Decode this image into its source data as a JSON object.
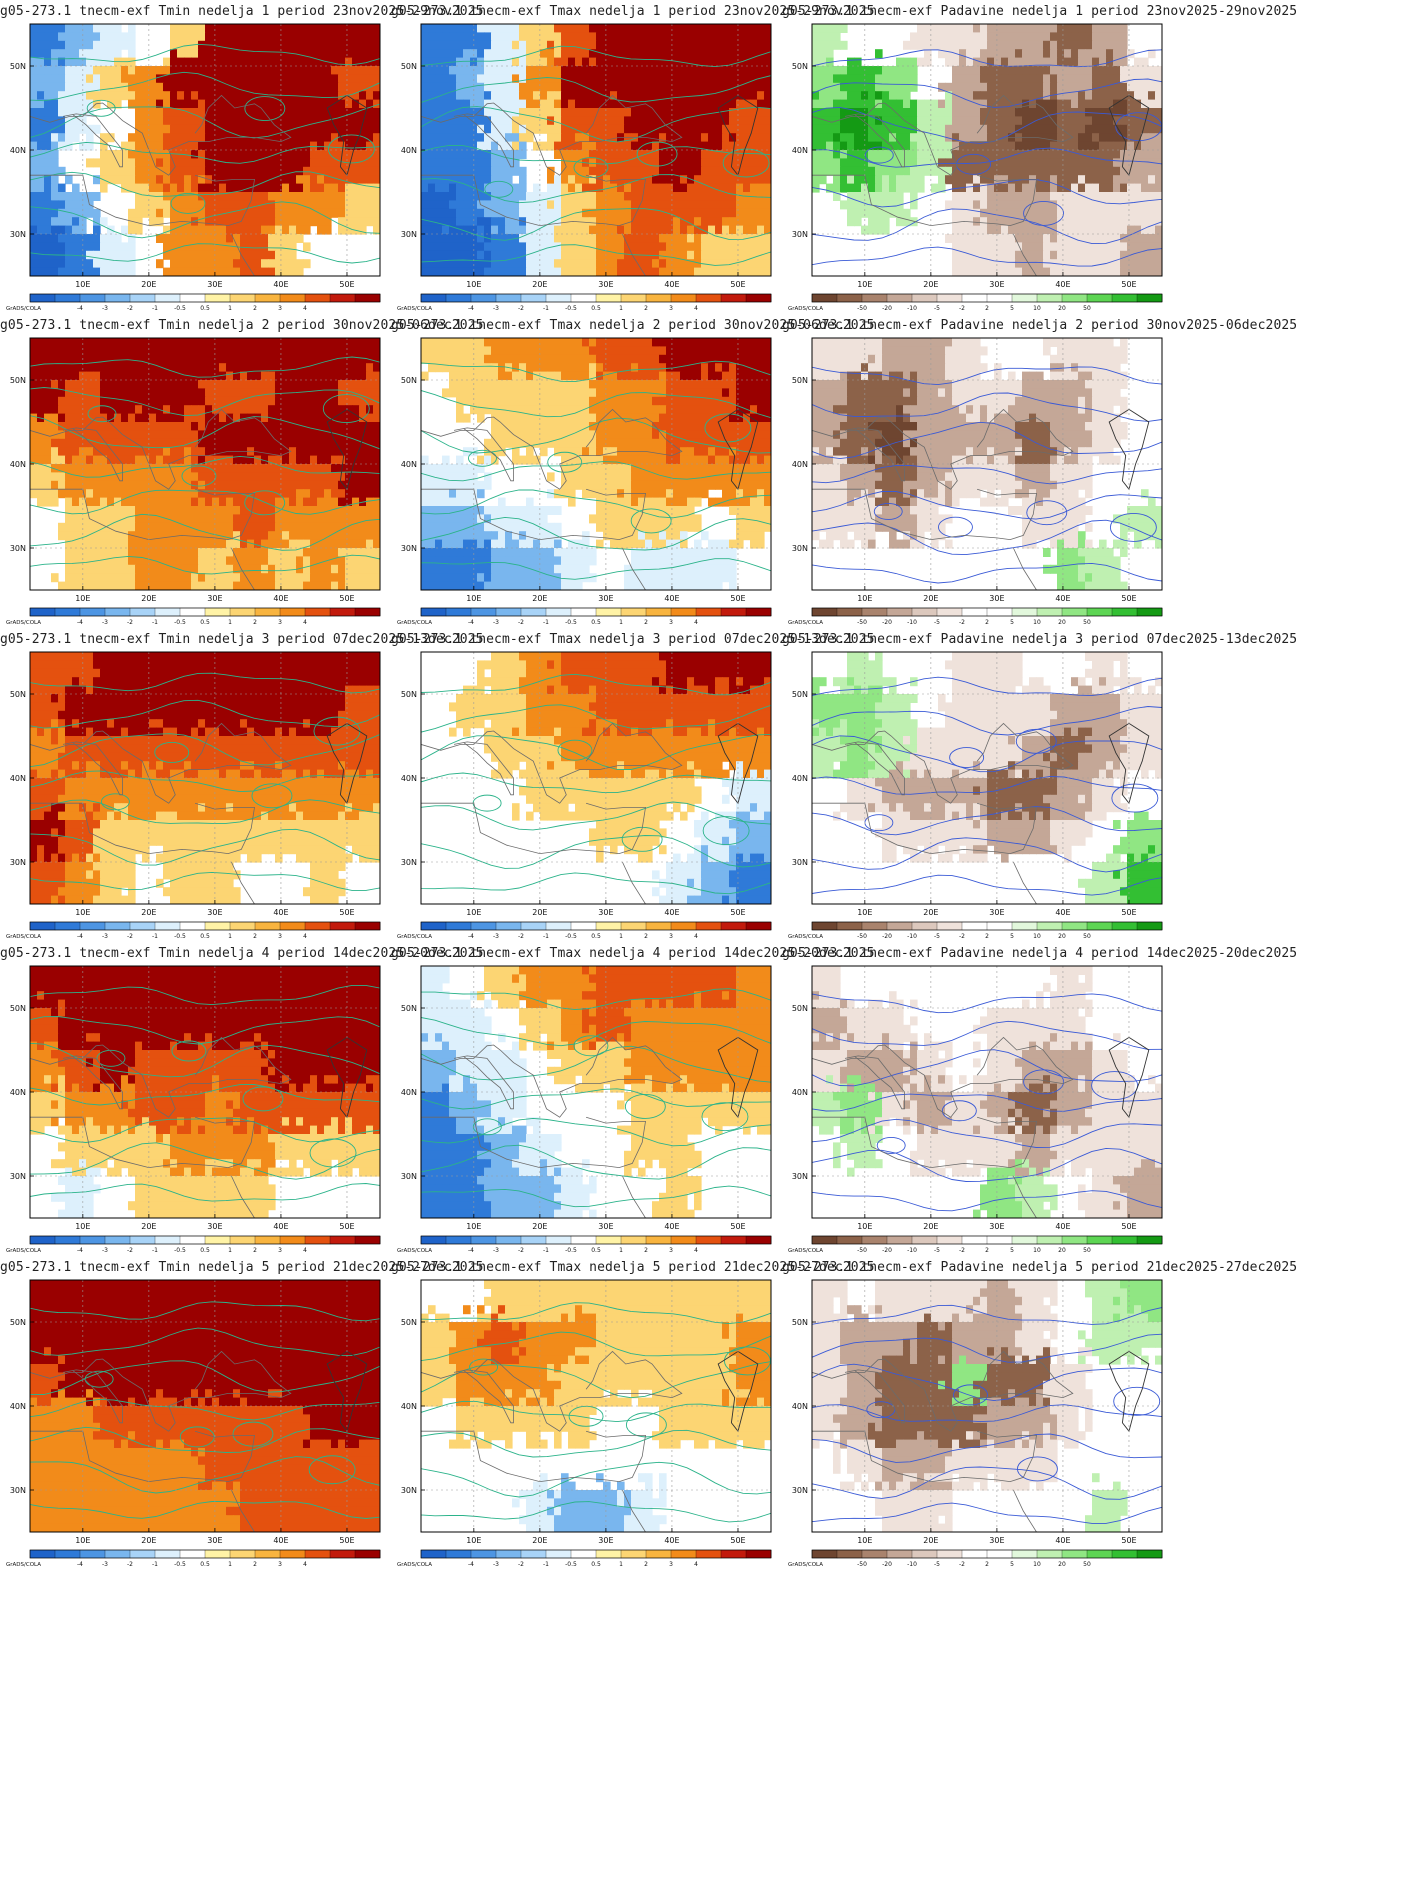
{
  "meta": {
    "cols": 3,
    "rows": 5
  },
  "axes": {
    "lat_labels": [
      "50N",
      "40N",
      "30N"
    ],
    "lon_labels": [
      "10E",
      "20E",
      "30E",
      "40E",
      "50E"
    ]
  },
  "colorbars": {
    "temperature": {
      "logo": "GrADS/COLA",
      "ticks": [
        "-4",
        "-3",
        "-2",
        "-1",
        "-0.5",
        "0.5",
        "1",
        "2",
        "3",
        "4"
      ],
      "colors": [
        "#1f63c9",
        "#2f7ad8",
        "#4d95e3",
        "#79b6ee",
        "#a8d3f7",
        "#ddf0fc",
        "#ffffff",
        "#fff3a6",
        "#fcd573",
        "#f8b43f",
        "#f28b1a",
        "#e4510f",
        "#c21a0c",
        "#9a0000"
      ]
    },
    "precip": {
      "logo": "GrADS/COLA",
      "ticks": [
        "-50",
        "-20",
        "-10",
        "-5",
        "-2",
        "2",
        "5",
        "10",
        "20",
        "50"
      ],
      "colors": [
        "#6e4530",
        "#8c6249",
        "#a9836d",
        "#c4a797",
        "#dcc8bd",
        "#efe2db",
        "#ffffff",
        "#ffffff",
        "#e2f8dc",
        "#bff0b1",
        "#90e683",
        "#5dd553",
        "#33bf33",
        "#149a14"
      ]
    }
  },
  "panels": [
    {
      "title": "g05-273.1 tnecm-exf Tmin nedelja 1 period 23nov2025-29nov2025",
      "variable": "Tmin",
      "week": 1,
      "colorbar": "temperature",
      "pattern": [
        [
          -3,
          -2,
          -1,
          0,
          1,
          4,
          4,
          4,
          4,
          4
        ],
        [
          -2,
          -1,
          1,
          2,
          4,
          4,
          4,
          4,
          4,
          3
        ],
        [
          -3,
          -1,
          0,
          2,
          3,
          4,
          4,
          4,
          4,
          4
        ],
        [
          -2,
          0,
          1,
          2,
          3,
          4,
          4,
          4,
          3,
          3
        ],
        [
          -3,
          -2,
          0,
          1,
          2,
          3,
          3,
          2,
          2,
          1
        ],
        [
          -4,
          -3,
          -1,
          0,
          2,
          2,
          3,
          1,
          0,
          0
        ]
      ]
    },
    {
      "title": "g05-273.1 tnecm-exf Tmax nedelja 1 period 23nov2025-29nov2025",
      "variable": "Tmax",
      "week": 1,
      "colorbar": "temperature",
      "pattern": [
        [
          -3,
          -3,
          -1,
          1,
          3,
          4,
          4,
          4,
          4,
          4
        ],
        [
          -3,
          -2,
          -1,
          2,
          4,
          4,
          4,
          4,
          4,
          4
        ],
        [
          -3,
          -3,
          -1,
          1,
          3,
          3,
          4,
          4,
          4,
          3
        ],
        [
          -3,
          -3,
          -2,
          0,
          2,
          3,
          3,
          4,
          3,
          3
        ],
        [
          -4,
          -3,
          -2,
          -1,
          1,
          2,
          3,
          3,
          3,
          2
        ],
        [
          -4,
          -4,
          -3,
          -1,
          1,
          2,
          3,
          2,
          1,
          1
        ]
      ]
    },
    {
      "title": "g05-273.1 tnecm-exf Padavine nedelja 1 period 23nov2025-29nov2025",
      "variable": "Padavine",
      "week": 1,
      "colorbar": "precip",
      "pattern": [
        [
          1,
          0,
          0,
          -1,
          -1,
          -2,
          -2,
          -3,
          -2,
          0
        ],
        [
          2,
          3,
          2,
          0,
          -2,
          -3,
          -3,
          -2,
          -3,
          -1
        ],
        [
          3,
          4,
          3,
          1,
          -2,
          -3,
          -4,
          -3,
          -4,
          -3
        ],
        [
          2,
          3,
          2,
          1,
          -3,
          -3,
          -3,
          -3,
          -3,
          -2
        ],
        [
          0,
          1,
          1,
          0,
          -1,
          -2,
          -2,
          -1,
          -1,
          -1
        ],
        [
          0,
          0,
          0,
          0,
          -1,
          -1,
          -2,
          -1,
          -1,
          -2
        ]
      ]
    },
    {
      "title": "g05-273.1 tnecm-exf Tmin nedelja 2 period 30nov2025-06dec2025",
      "variable": "Tmin",
      "week": 2,
      "colorbar": "temperature",
      "pattern": [
        [
          4,
          4,
          4,
          4,
          4,
          4,
          4,
          4,
          4,
          4
        ],
        [
          4,
          3,
          4,
          4,
          4,
          3,
          3,
          4,
          4,
          3
        ],
        [
          2,
          3,
          3,
          3,
          3,
          4,
          4,
          4,
          4,
          4
        ],
        [
          1,
          2,
          2,
          2,
          2,
          3,
          3,
          3,
          3,
          4
        ],
        [
          0,
          1,
          1,
          2,
          2,
          2,
          3,
          2,
          2,
          2
        ],
        [
          0,
          1,
          1,
          2,
          2,
          1,
          2,
          1,
          2,
          1
        ]
      ]
    },
    {
      "title": "g05-273.1 tnecm-exf Tmax nedelja 2 period 30nov2025-06dec2025",
      "variable": "Tmax",
      "week": 2,
      "colorbar": "temperature",
      "pattern": [
        [
          1,
          1,
          2,
          2,
          2,
          3,
          3,
          4,
          4,
          4
        ],
        [
          0,
          1,
          1,
          1,
          1,
          2,
          2,
          3,
          3,
          4
        ],
        [
          0,
          0,
          1,
          1,
          1,
          2,
          2,
          3,
          3,
          3
        ],
        [
          -1,
          -1,
          0,
          0,
          1,
          1,
          2,
          2,
          2,
          2
        ],
        [
          -2,
          -2,
          -1,
          -1,
          0,
          1,
          1,
          1,
          0,
          1
        ],
        [
          -3,
          -3,
          -2,
          -2,
          -1,
          0,
          -1,
          -1,
          -1,
          0
        ]
      ]
    },
    {
      "title": "g05-273.1 tnecm-exf Padavine nedelja 2 period 30nov2025-06dec2025",
      "variable": "Padavine",
      "week": 2,
      "colorbar": "precip",
      "pattern": [
        [
          -1,
          -1,
          -2,
          -2,
          -1,
          0,
          0,
          -1,
          -1,
          0
        ],
        [
          -2,
          -3,
          -3,
          -2,
          -1,
          -1,
          -2,
          -2,
          -1,
          0
        ],
        [
          -2,
          -3,
          -4,
          -2,
          -2,
          -2,
          -3,
          -2,
          -1,
          0
        ],
        [
          -1,
          -2,
          -3,
          -2,
          -1,
          -1,
          -2,
          -1,
          0,
          0
        ],
        [
          -1,
          -1,
          -2,
          -1,
          0,
          0,
          -1,
          -1,
          0,
          1
        ],
        [
          0,
          0,
          0,
          0,
          0,
          0,
          0,
          2,
          1,
          0
        ]
      ]
    },
    {
      "title": "g05-273.1 tnecm-exf Tmin nedelja 3 period 07dec2025-13dec2025",
      "variable": "Tmin",
      "week": 3,
      "colorbar": "temperature",
      "pattern": [
        [
          3,
          3,
          4,
          4,
          4,
          4,
          4,
          4,
          4,
          4
        ],
        [
          3,
          4,
          4,
          4,
          4,
          4,
          4,
          4,
          4,
          3
        ],
        [
          2,
          3,
          3,
          3,
          3,
          3,
          3,
          3,
          3,
          3
        ],
        [
          3,
          2,
          2,
          2,
          2,
          2,
          2,
          2,
          2,
          2
        ],
        [
          4,
          3,
          1,
          1,
          1,
          1,
          1,
          1,
          1,
          1
        ],
        [
          3,
          2,
          1,
          0,
          1,
          1,
          0,
          0,
          1,
          0
        ]
      ]
    },
    {
      "title": "g05-273.1 tnecm-exf Tmax nedelja 3 period 07dec2025-13dec2025",
      "variable": "Tmax",
      "week": 3,
      "colorbar": "temperature",
      "pattern": [
        [
          0,
          0,
          1,
          2,
          3,
          3,
          3,
          4,
          4,
          4
        ],
        [
          0,
          1,
          1,
          2,
          2,
          3,
          3,
          3,
          3,
          3
        ],
        [
          0,
          0,
          1,
          1,
          2,
          2,
          2,
          2,
          2,
          2
        ],
        [
          0,
          0,
          0,
          1,
          1,
          1,
          1,
          1,
          0,
          -1
        ],
        [
          0,
          0,
          0,
          0,
          0,
          1,
          1,
          0,
          -1,
          -2
        ],
        [
          0,
          0,
          0,
          0,
          0,
          0,
          0,
          -1,
          -2,
          -3
        ]
      ]
    },
    {
      "title": "g05-273.1 tnecm-exf Padavine nedelja 3 period 07dec2025-13dec2025",
      "variable": "Padavine",
      "week": 3,
      "colorbar": "precip",
      "pattern": [
        [
          0,
          1,
          0,
          0,
          -1,
          -1,
          0,
          0,
          -1,
          0
        ],
        [
          2,
          2,
          1,
          0,
          -1,
          -1,
          -1,
          -2,
          -2,
          -1
        ],
        [
          1,
          2,
          1,
          -1,
          -1,
          -1,
          -2,
          -3,
          -2,
          -1
        ],
        [
          0,
          -1,
          -2,
          -2,
          -2,
          -3,
          -3,
          -2,
          -1,
          0
        ],
        [
          0,
          0,
          -1,
          -1,
          -1,
          -2,
          -2,
          -1,
          0,
          2
        ],
        [
          0,
          0,
          0,
          0,
          0,
          0,
          0,
          0,
          1,
          3
        ]
      ]
    },
    {
      "title": "g05-273.1 tnecm-exf Tmin nedelja 4 period 14dec2025-20dec2025",
      "variable": "Tmin",
      "week": 4,
      "colorbar": "temperature",
      "pattern": [
        [
          4,
          4,
          4,
          4,
          4,
          4,
          4,
          4,
          4,
          4
        ],
        [
          3,
          4,
          4,
          4,
          4,
          4,
          4,
          4,
          4,
          4
        ],
        [
          2,
          3,
          4,
          3,
          3,
          3,
          3,
          4,
          4,
          4
        ],
        [
          1,
          2,
          2,
          3,
          3,
          2,
          3,
          3,
          3,
          3
        ],
        [
          0,
          1,
          1,
          1,
          2,
          2,
          2,
          1,
          1,
          1
        ],
        [
          0,
          -1,
          0,
          1,
          1,
          1,
          1,
          0,
          0,
          0
        ]
      ]
    },
    {
      "title": "g05-273.1 tnecm-exf Tmax nedelja 4 period 14dec2025-20dec2025",
      "variable": "Tmax",
      "week": 4,
      "colorbar": "temperature",
      "pattern": [
        [
          -1,
          0,
          1,
          2,
          2,
          3,
          3,
          3,
          3,
          2
        ],
        [
          -1,
          -1,
          0,
          1,
          2,
          3,
          2,
          2,
          2,
          2
        ],
        [
          -2,
          -1,
          -1,
          0,
          1,
          1,
          2,
          2,
          2,
          2
        ],
        [
          -3,
          -2,
          -1,
          0,
          0,
          0,
          1,
          1,
          1,
          1
        ],
        [
          -3,
          -3,
          -2,
          -1,
          0,
          0,
          1,
          1,
          0,
          0
        ],
        [
          -3,
          -3,
          -2,
          -2,
          -1,
          0,
          0,
          1,
          0,
          0
        ]
      ]
    },
    {
      "title": "g05-273.1 tnecm-exf Padavine nedelja 4 period 14dec2025-20dec2025",
      "variable": "Padavine",
      "week": 4,
      "colorbar": "precip",
      "pattern": [
        [
          -1,
          0,
          0,
          0,
          0,
          0,
          0,
          -1,
          0,
          0
        ],
        [
          -2,
          -1,
          -1,
          0,
          0,
          -1,
          -1,
          -1,
          0,
          0
        ],
        [
          -1,
          -2,
          -2,
          -1,
          0,
          -1,
          -2,
          -2,
          -1,
          0
        ],
        [
          1,
          2,
          -1,
          -2,
          -1,
          -2,
          -3,
          -2,
          -1,
          -1
        ],
        [
          0,
          1,
          0,
          -1,
          -1,
          -1,
          -2,
          -1,
          -1,
          -1
        ],
        [
          0,
          0,
          0,
          0,
          0,
          2,
          1,
          0,
          -1,
          -2
        ]
      ]
    },
    {
      "title": "g05-273.1 tnecm-exf Tmin nedelja 5 period 21dec2025-27dec2025",
      "variable": "Tmin",
      "week": 5,
      "colorbar": "temperature",
      "pattern": [
        [
          4,
          4,
          4,
          4,
          4,
          4,
          4,
          4,
          4,
          4
        ],
        [
          4,
          4,
          4,
          4,
          4,
          4,
          4,
          4,
          4,
          4
        ],
        [
          3,
          4,
          4,
          4,
          4,
          4,
          4,
          4,
          4,
          4
        ],
        [
          2,
          2,
          3,
          3,
          3,
          3,
          3,
          3,
          4,
          4
        ],
        [
          2,
          2,
          2,
          2,
          2,
          3,
          3,
          3,
          3,
          3
        ],
        [
          2,
          2,
          2,
          2,
          2,
          2,
          3,
          3,
          3,
          3
        ]
      ]
    },
    {
      "title": "g05-273.1 tnecm-exf Tmax nedelja 5 period 21dec2025-27dec2025",
      "variable": "Tmax",
      "week": 5,
      "colorbar": "temperature",
      "pattern": [
        [
          0,
          0,
          1,
          1,
          1,
          1,
          1,
          1,
          1,
          1
        ],
        [
          1,
          2,
          3,
          2,
          2,
          1,
          1,
          1,
          1,
          2
        ],
        [
          1,
          2,
          2,
          2,
          1,
          1,
          1,
          1,
          1,
          2
        ],
        [
          0,
          1,
          1,
          1,
          1,
          0,
          0,
          1,
          1,
          1
        ],
        [
          0,
          0,
          0,
          0,
          0,
          0,
          0,
          0,
          0,
          0
        ],
        [
          0,
          0,
          0,
          -1,
          -2,
          -2,
          -1,
          0,
          0,
          0
        ]
      ]
    },
    {
      "title": "g05-273.1 tnecm-exf Padavine nedelja 5 period 21dec2025-27dec2025",
      "variable": "Padavine",
      "week": 5,
      "colorbar": "precip",
      "pattern": [
        [
          -1,
          0,
          -1,
          -1,
          -1,
          -2,
          -1,
          0,
          1,
          2
        ],
        [
          -1,
          -2,
          -2,
          -3,
          -2,
          -2,
          -1,
          0,
          1,
          1
        ],
        [
          -1,
          -2,
          -3,
          -3,
          2,
          -3,
          -3,
          -1,
          0,
          0
        ],
        [
          -1,
          -2,
          -3,
          -3,
          -3,
          -2,
          -2,
          -1,
          0,
          0
        ],
        [
          0,
          -1,
          -2,
          -2,
          -1,
          -1,
          -1,
          0,
          0,
          0
        ],
        [
          0,
          0,
          -1,
          -1,
          0,
          0,
          0,
          0,
          1,
          0
        ]
      ]
    }
  ]
}
